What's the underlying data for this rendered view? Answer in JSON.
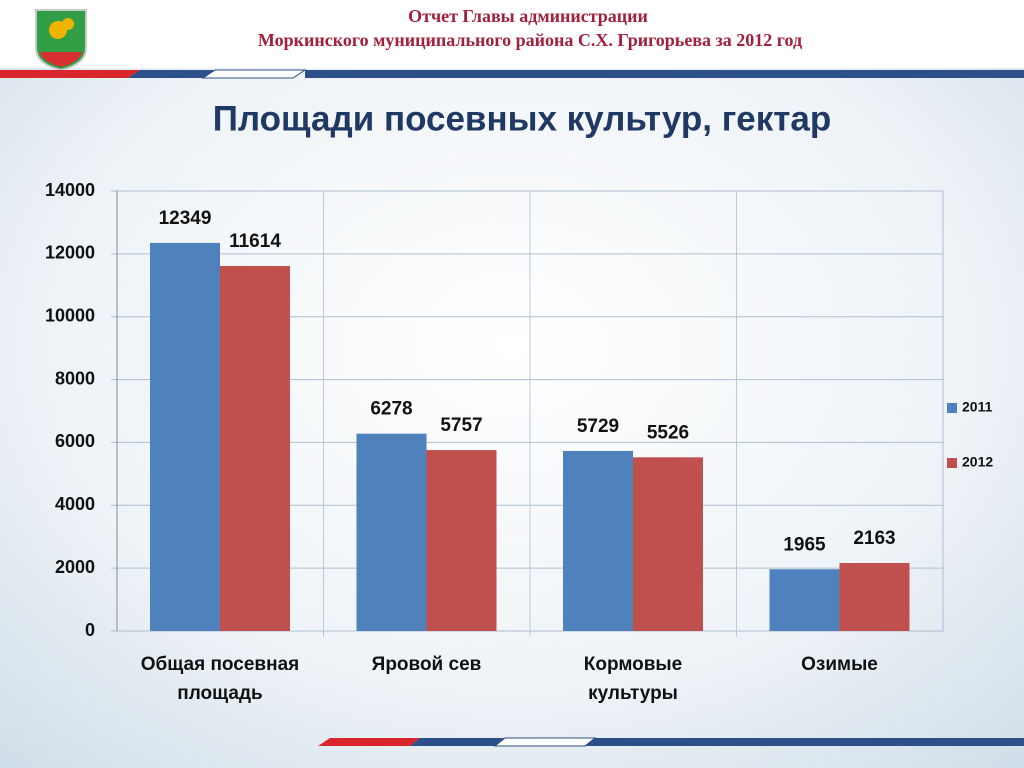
{
  "header": {
    "line1": "Отчет  Главы администрации",
    "line2": "Моркинского муниципального района С.Х. Григорьева за 2012 год"
  },
  "chart_data": {
    "type": "bar",
    "title": "Площади посевных культур, гектар",
    "categories": [
      "Общая посевная\nплощадь",
      "Яровой сев",
      "Кормовые\nкультуры",
      "Озимые"
    ],
    "series": [
      {
        "name": "2011",
        "color": "#4f81bd",
        "values": [
          12349,
          6278,
          5729,
          1965
        ]
      },
      {
        "name": "2012",
        "color": "#c0504d",
        "values": [
          11614,
          5757,
          5526,
          2163
        ]
      }
    ],
    "ylim": [
      0,
      14000
    ],
    "yticks": [
      0,
      2000,
      4000,
      6000,
      8000,
      10000,
      12000,
      14000
    ],
    "grid": true,
    "legend": "right"
  }
}
